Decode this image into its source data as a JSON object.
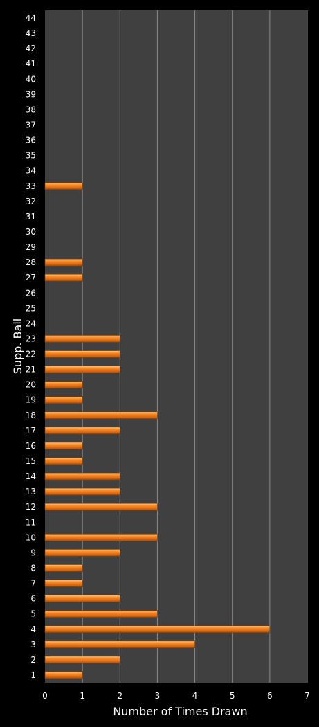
{
  "chart_data": {
    "type": "bar",
    "orientation": "horizontal",
    "xlabel": "Number of Times Drawn",
    "ylabel": "Supp. Ball",
    "xlim": [
      0,
      7
    ],
    "x_ticks": [
      "0",
      "1",
      "2",
      "3",
      "4",
      "5",
      "6",
      "7"
    ],
    "categories": [
      "1",
      "2",
      "3",
      "4",
      "5",
      "6",
      "7",
      "8",
      "9",
      "10",
      "11",
      "12",
      "13",
      "14",
      "15",
      "16",
      "17",
      "18",
      "19",
      "20",
      "21",
      "22",
      "23",
      "24",
      "25",
      "26",
      "27",
      "28",
      "29",
      "30",
      "31",
      "32",
      "33",
      "34",
      "35",
      "36",
      "37",
      "38",
      "39",
      "40",
      "41",
      "42",
      "43",
      "44"
    ],
    "values": [
      1,
      2,
      4,
      6,
      3,
      2,
      1,
      1,
      2,
      3,
      0,
      3,
      2,
      2,
      1,
      1,
      2,
      3,
      1,
      1,
      2,
      2,
      2,
      0,
      0,
      0,
      1,
      1,
      0,
      0,
      0,
      0,
      1,
      0,
      0,
      0,
      0,
      0,
      0,
      0,
      0,
      0,
      0,
      0
    ],
    "grid": "vertical",
    "legend": "none",
    "colors": {
      "background": "#000000",
      "plot_area": "#404040",
      "gridline": "#8a8a8a",
      "bar": "#f07d1e",
      "bar_highlight": "#ffc27a",
      "bar_shadow": "#a84a08",
      "text": "#ffffff"
    }
  }
}
